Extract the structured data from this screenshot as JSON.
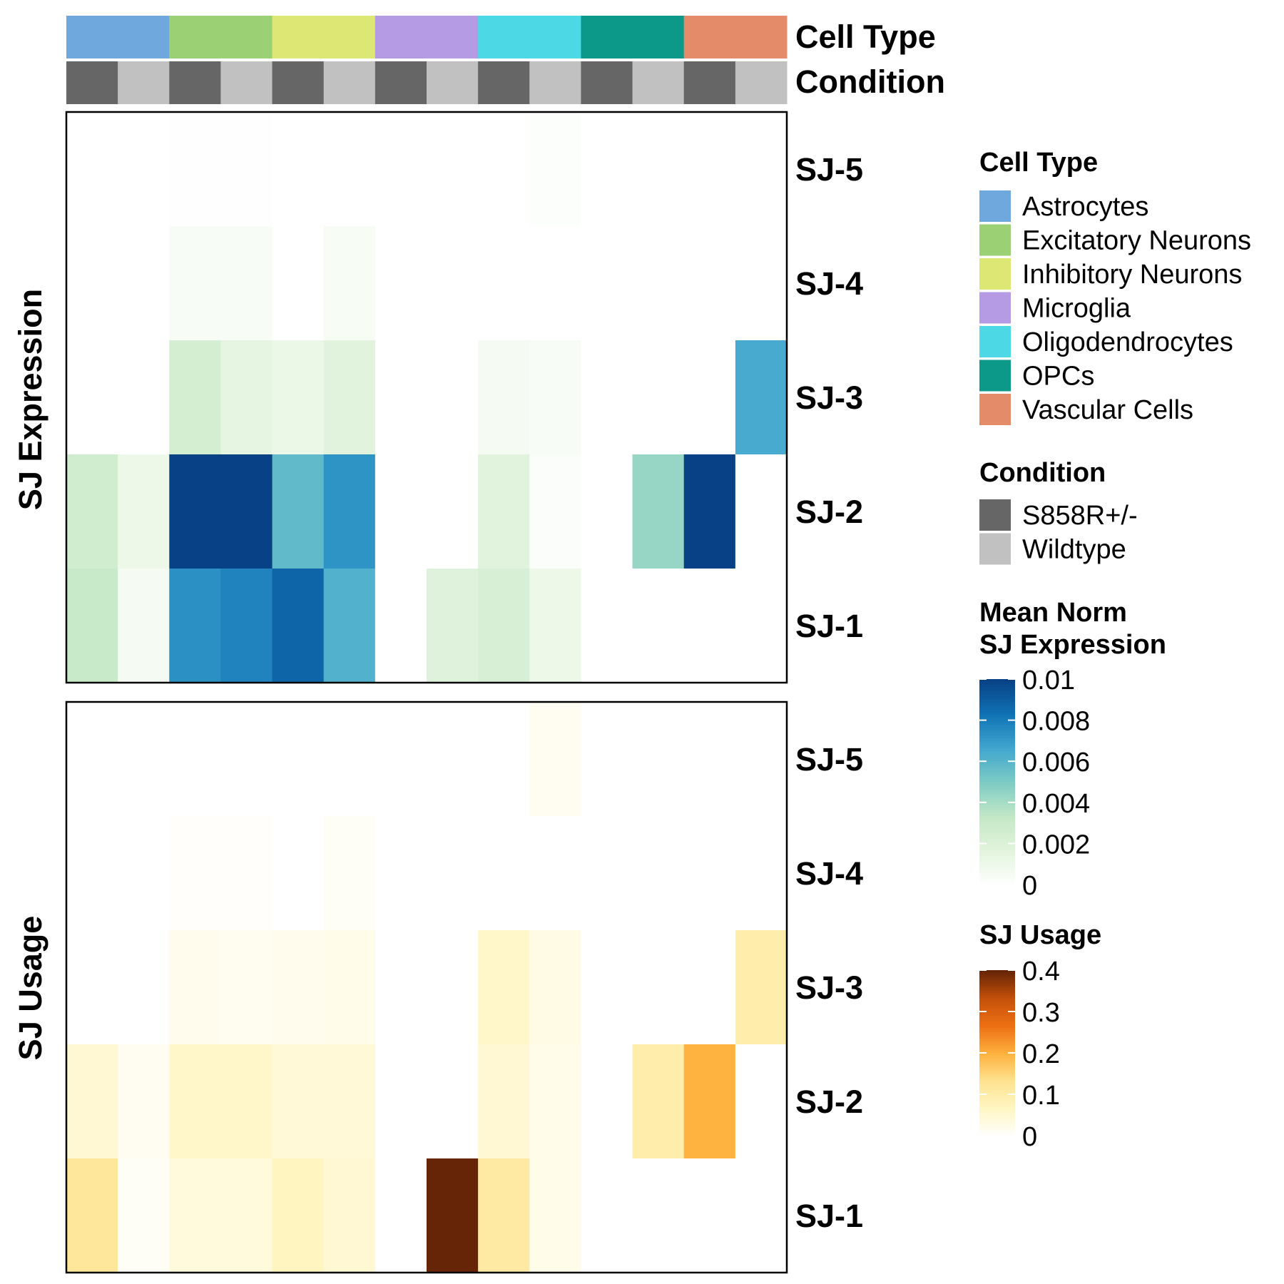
{
  "chart_data": {
    "type": "heatmap",
    "annotations": {
      "cell_type": {
        "label": "Cell Type",
        "values": [
          "Astrocytes",
          "Excitatory Neurons",
          "Inhibitory Neurons",
          "Microglia",
          "Oligodendrocytes",
          "OPCs",
          "Vascular Cells"
        ]
      },
      "condition": {
        "label": "Condition",
        "values": [
          "S858R+/-",
          "Wildtype",
          "S858R+/-",
          "Wildtype",
          "S858R+/-",
          "Wildtype",
          "S858R+/-",
          "Wildtype",
          "S858R+/-",
          "Wildtype",
          "S858R+/-",
          "Wildtype",
          "S858R+/-",
          "Wildtype"
        ]
      }
    },
    "rows": [
      "SJ-5",
      "SJ-4",
      "SJ-3",
      "SJ-2",
      "SJ-1"
    ],
    "panels": [
      {
        "key": "expression",
        "title": "SJ Expression",
        "values": [
          [
            0,
            0,
            0.0001,
            0.0001,
            0,
            0,
            0,
            0,
            0,
            0.0002,
            0,
            0,
            0,
            0
          ],
          [
            0,
            0,
            0.0004,
            0.0004,
            0,
            0.0005,
            0,
            0,
            0,
            0,
            0,
            0,
            0,
            0
          ],
          [
            0,
            0,
            0.0025,
            0.0015,
            0.0012,
            0.0018,
            0,
            0,
            0.0006,
            0.0004,
            0,
            0,
            0,
            0.0065
          ],
          [
            0.0027,
            0.0011,
            0.01,
            0.01,
            0.0058,
            0.0073,
            0,
            0,
            0.0018,
            0.0003,
            0,
            0.0044,
            0.01,
            0
          ],
          [
            0.0031,
            0.0006,
            0.0074,
            0.0078,
            0.0088,
            0.0062,
            0,
            0.0019,
            0.0023,
            0.0011,
            0,
            0,
            0,
            0
          ]
        ]
      },
      {
        "key": "usage",
        "title": "SJ Usage",
        "values": [
          [
            0,
            0,
            0,
            0,
            0,
            0,
            0,
            0,
            0,
            0.015,
            0,
            0,
            0,
            0
          ],
          [
            0,
            0,
            0.006,
            0.006,
            0,
            0.01,
            0,
            0,
            0,
            0,
            0,
            0,
            0,
            0
          ],
          [
            0,
            0,
            0.02,
            0.018,
            0.02,
            0.025,
            0,
            0,
            0.06,
            0.03,
            0,
            0,
            0,
            0.1
          ],
          [
            0.05,
            0.015,
            0.06,
            0.06,
            0.045,
            0.045,
            0,
            0,
            0.05,
            0.025,
            0,
            0.1,
            0.2,
            0
          ],
          [
            0.12,
            0.01,
            0.04,
            0.04,
            0.07,
            0.05,
            0,
            0.4,
            0.11,
            0.025,
            0,
            0,
            0,
            0
          ]
        ]
      }
    ],
    "legends": {
      "cell_type": {
        "title": "Cell Type",
        "items": [
          {
            "label": "Astrocytes",
            "color": "#6FA8DC"
          },
          {
            "label": "Excitatory Neurons",
            "color": "#9BD174"
          },
          {
            "label": "Inhibitory Neurons",
            "color": "#DDE874"
          },
          {
            "label": "Microglia",
            "color": "#B59AE4"
          },
          {
            "label": "Oligodendrocytes",
            "color": "#4DD8E6"
          },
          {
            "label": "OPCs",
            "color": "#0D998A"
          },
          {
            "label": "Vascular Cells",
            "color": "#E48B69"
          }
        ]
      },
      "condition": {
        "title": "Condition",
        "items": [
          {
            "label": "S858R+/-",
            "color": "#666666"
          },
          {
            "label": "Wildtype",
            "color": "#C1C1C1"
          }
        ]
      },
      "expression": {
        "title_lines": [
          "Mean Norm",
          "SJ Expression"
        ],
        "ticks": [
          "0.01",
          "0.008",
          "0.006",
          "0.004",
          "0.002",
          "0"
        ],
        "tick_values": [
          0.01,
          0.008,
          0.006,
          0.004,
          0.002,
          0
        ],
        "range": [
          0,
          0.01
        ],
        "colors": [
          "#FFFFFF",
          "#E3F4DE",
          "#C4E8C6",
          "#7ECCC4",
          "#41A6CF",
          "#1073B5",
          "#084185"
        ]
      },
      "usage": {
        "title": "SJ Usage",
        "ticks": [
          "0.4",
          "0.3",
          "0.2",
          "0.1",
          "0"
        ],
        "tick_values": [
          0.4,
          0.3,
          0.2,
          0.1,
          0
        ],
        "range": [
          0,
          0.4
        ],
        "colors": [
          "#FFFFFF",
          "#FFF6C4",
          "#FEE391",
          "#FEB23F",
          "#EE7014",
          "#C4500A",
          "#662506"
        ]
      }
    }
  }
}
